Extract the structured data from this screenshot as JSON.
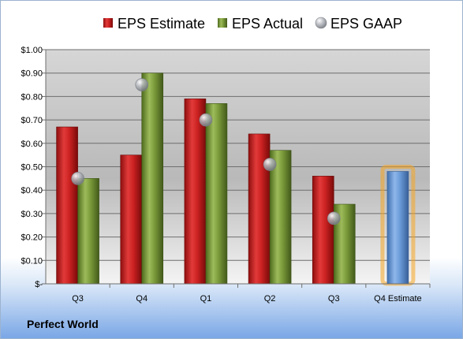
{
  "company": "Perfect World",
  "chart_data": {
    "type": "bar",
    "categories": [
      "Q3",
      "Q4",
      "Q1",
      "Q2",
      "Q3",
      "Q4 Estimate"
    ],
    "series": [
      {
        "name": "EPS Estimate",
        "values": [
          0.67,
          0.55,
          0.79,
          0.64,
          0.46,
          0.48
        ],
        "color": "#cc2222"
      },
      {
        "name": "EPS Actual",
        "values": [
          0.45,
          0.9,
          0.77,
          0.57,
          0.34,
          null
        ],
        "color": "#7a9a3a"
      },
      {
        "name": "EPS GAAP",
        "values": [
          0.45,
          0.85,
          0.7,
          0.51,
          0.28,
          null
        ],
        "color": "#a0a4ab"
      }
    ],
    "highlight_color": "#6a9bd8",
    "yticks": [
      "$1.00",
      "$0.90",
      "$0.80",
      "$0.70",
      "$0.60",
      "$0.50",
      "$0.40",
      "$0.30",
      "$0.20",
      "$0.10",
      "$-"
    ],
    "ylim": [
      0,
      1.0
    ],
    "grid": true,
    "legend": "top"
  }
}
